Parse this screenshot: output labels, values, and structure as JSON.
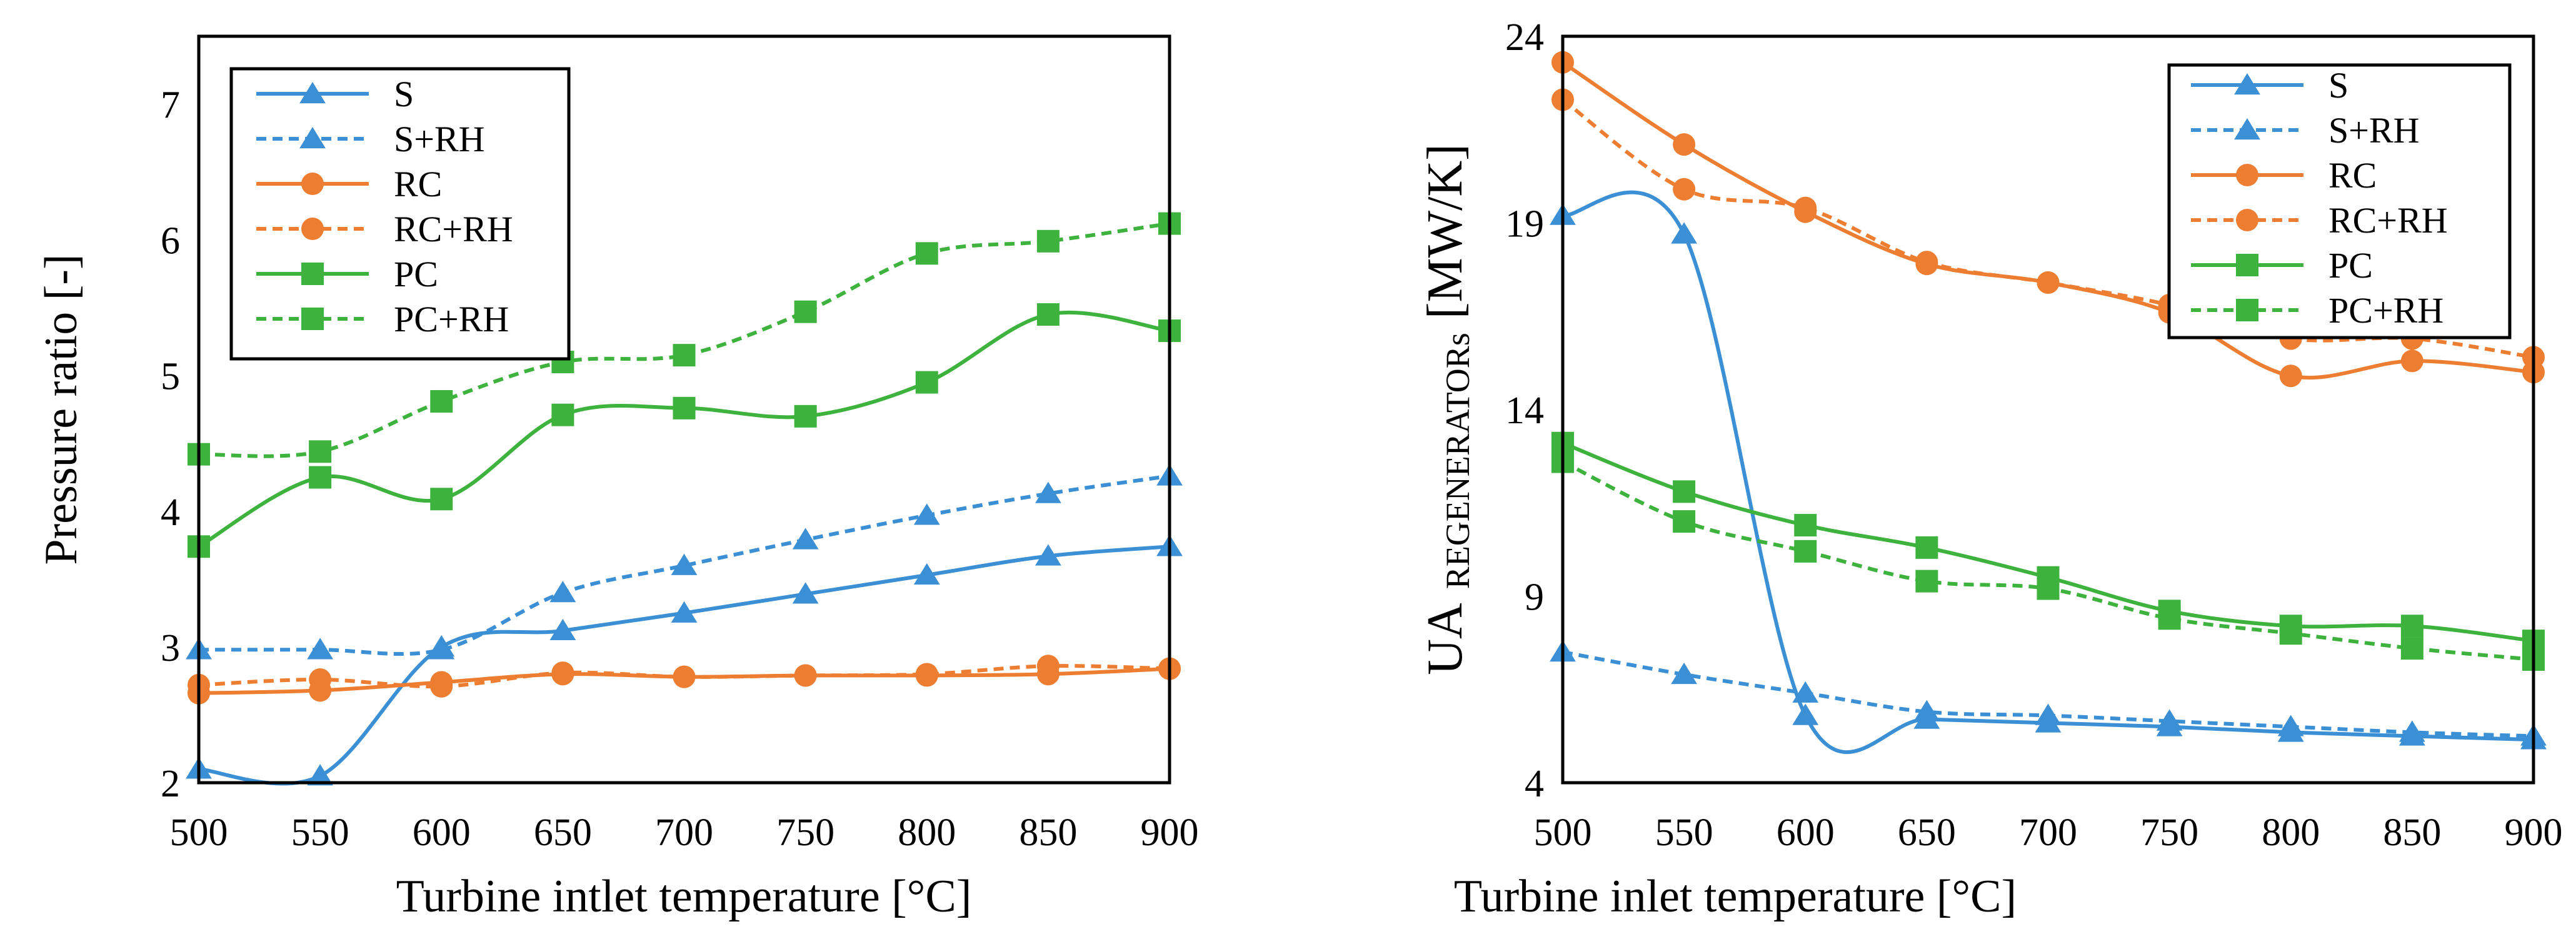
{
  "chart_data": [
    {
      "type": "line",
      "xlabel": "Turbine intlet temperature [°C]",
      "ylabel": "Pressure ratio [-]",
      "xlim": [
        500,
        900
      ],
      "ylim": [
        2,
        7.5
      ],
      "xticks": [
        500,
        550,
        600,
        650,
        700,
        750,
        800,
        850,
        900
      ],
      "yticks": [
        2,
        3,
        4,
        5,
        6,
        7
      ],
      "grid": false,
      "legend_position": "top-left",
      "x": [
        500,
        550,
        600,
        650,
        700,
        750,
        800,
        850,
        900
      ],
      "series": [
        {
          "name": "S",
          "color": "#3b8fd4",
          "dash": "solid",
          "marker": "triangle",
          "values": [
            2.1,
            2.05,
            3.0,
            3.12,
            3.25,
            3.39,
            3.53,
            3.67,
            3.74
          ]
        },
        {
          "name": "S+RH",
          "color": "#3b8fd4",
          "dash": "dashed",
          "marker": "triangle",
          "values": [
            2.98,
            2.98,
            2.98,
            3.4,
            3.6,
            3.79,
            3.97,
            4.13,
            4.26
          ]
        },
        {
          "name": "RC",
          "color": "#ed7d31",
          "dash": "solid",
          "marker": "circle",
          "values": [
            2.66,
            2.68,
            2.74,
            2.8,
            2.78,
            2.79,
            2.79,
            2.8,
            2.84
          ]
        },
        {
          "name": "RC+RH",
          "color": "#ed7d31",
          "dash": "dashed",
          "marker": "circle",
          "values": [
            2.72,
            2.76,
            2.71,
            2.81,
            2.78,
            2.79,
            2.8,
            2.86,
            2.84
          ]
        },
        {
          "name": "PC",
          "color": "#3db33d",
          "dash": "solid",
          "marker": "square",
          "values": [
            3.74,
            4.25,
            4.09,
            4.71,
            4.76,
            4.7,
            4.95,
            5.45,
            5.33
          ]
        },
        {
          "name": "PC+RH",
          "color": "#3db33d",
          "dash": "dashed",
          "marker": "square",
          "values": [
            4.42,
            4.44,
            4.81,
            5.1,
            5.15,
            5.47,
            5.9,
            5.99,
            6.12
          ]
        }
      ]
    },
    {
      "type": "line",
      "xlabel": "Turbine inlet temperature [°C]",
      "ylabel_main": "UA",
      "ylabel_sub": "REGENERATORs",
      "ylabel_unit": "[MW/K]",
      "xlim": [
        500,
        900
      ],
      "ylim": [
        4,
        24
      ],
      "xticks": [
        500,
        550,
        600,
        650,
        700,
        750,
        800,
        850,
        900
      ],
      "yticks": [
        4,
        9,
        14,
        19,
        24
      ],
      "grid": false,
      "legend_position": "top-right",
      "x": [
        500,
        550,
        600,
        650,
        700,
        750,
        800,
        850,
        900
      ],
      "series": [
        {
          "name": "S",
          "color": "#3b8fd4",
          "dash": "solid",
          "marker": "triangle",
          "values": [
            19.2,
            18.7,
            5.8,
            5.7,
            5.6,
            5.5,
            5.35,
            5.25,
            5.15
          ]
        },
        {
          "name": "S+RH",
          "color": "#3b8fd4",
          "dash": "dashed",
          "marker": "triangle",
          "values": [
            7.5,
            6.9,
            6.4,
            5.9,
            5.8,
            5.65,
            5.5,
            5.35,
            5.25
          ]
        },
        {
          "name": "RC",
          "color": "#ed7d31",
          "dash": "solid",
          "marker": "circle",
          "values": [
            23.3,
            21.1,
            19.3,
            17.9,
            17.4,
            16.6,
            14.9,
            15.3,
            15.0
          ]
        },
        {
          "name": "RC+RH",
          "color": "#ed7d31",
          "dash": "dashed",
          "marker": "circle",
          "values": [
            22.3,
            19.9,
            19.4,
            17.95,
            17.4,
            16.8,
            15.9,
            15.9,
            15.4
          ]
        },
        {
          "name": "PC",
          "color": "#3db33d",
          "dash": "solid",
          "marker": "square",
          "values": [
            13.1,
            11.8,
            10.9,
            10.3,
            9.5,
            8.6,
            8.2,
            8.2,
            7.8
          ]
        },
        {
          "name": "PC+RH",
          "color": "#3db33d",
          "dash": "dashed",
          "marker": "square",
          "values": [
            12.6,
            11.0,
            10.2,
            9.4,
            9.2,
            8.4,
            8.0,
            7.6,
            7.3
          ]
        }
      ]
    }
  ]
}
